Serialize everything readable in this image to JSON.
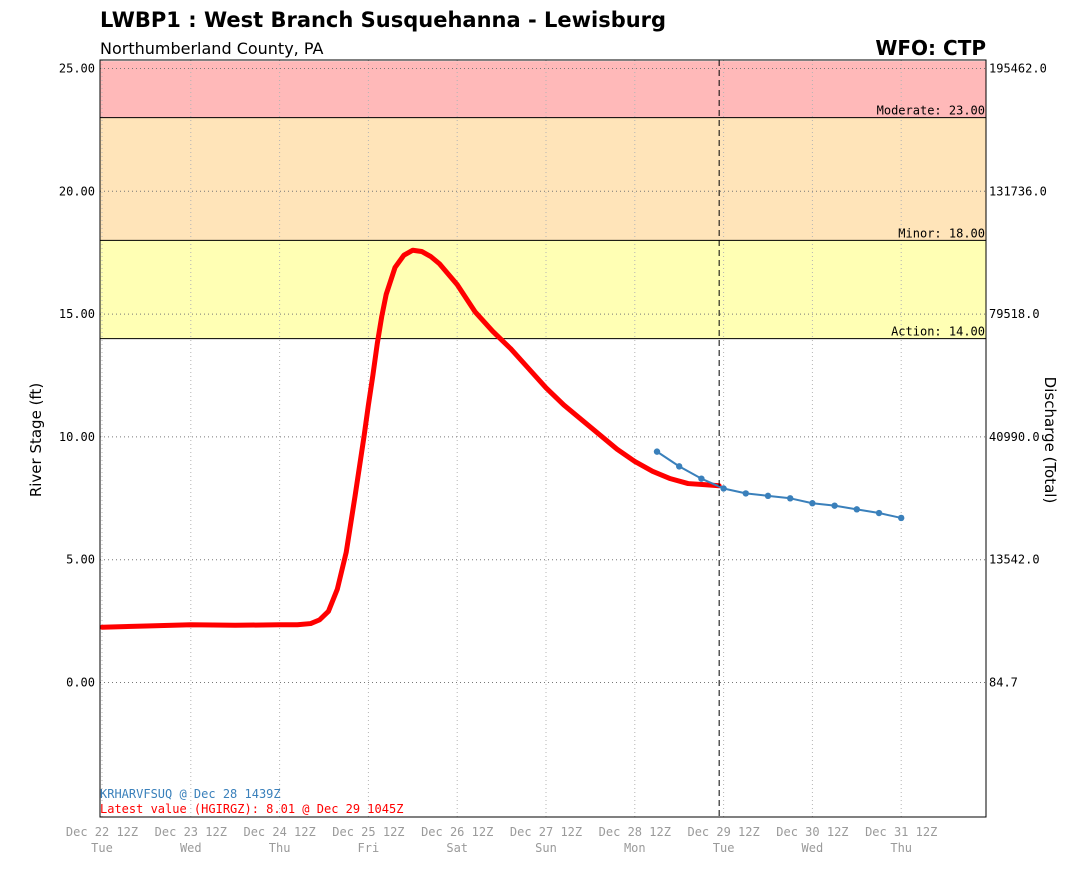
{
  "header": {
    "title": "LWBP1 : West Branch Susquehanna - Lewisburg",
    "subtitle": "Northumberland County, PA",
    "wfo": "WFO: CTP"
  },
  "chart_data": {
    "type": "line",
    "ylabel": "River Stage (ft)",
    "ylabel_right": "Discharge (Total)",
    "ylim": [
      -5.5,
      25.3
    ],
    "yticks": [
      {
        "value": 0,
        "label": "0.00",
        "right": "84.7"
      },
      {
        "value": 5,
        "label": "5.00",
        "right": "13542.0"
      },
      {
        "value": 10,
        "label": "10.00",
        "right": "40990.0"
      },
      {
        "value": 15,
        "label": "15.00",
        "right": "79518.0"
      },
      {
        "value": 20,
        "label": "20.00",
        "right": "131736.0"
      },
      {
        "value": 25,
        "label": "25.00",
        "right": "195462.0"
      }
    ],
    "xticks": [
      {
        "day": 0,
        "label": "Dec 22 12Z",
        "sub": "Tue"
      },
      {
        "day": 1,
        "label": "Dec 23 12Z",
        "sub": "Wed"
      },
      {
        "day": 2,
        "label": "Dec 24 12Z",
        "sub": "Thu"
      },
      {
        "day": 3,
        "label": "Dec 25 12Z",
        "sub": "Fri"
      },
      {
        "day": 4,
        "label": "Dec 26 12Z",
        "sub": "Sat"
      },
      {
        "day": 5,
        "label": "Dec 27 12Z",
        "sub": "Sun"
      },
      {
        "day": 6,
        "label": "Dec 28 12Z",
        "sub": "Mon"
      },
      {
        "day": 7,
        "label": "Dec 29 12Z",
        "sub": "Tue"
      },
      {
        "day": 8,
        "label": "Dec 30 12Z",
        "sub": "Wed"
      },
      {
        "day": 9,
        "label": "Dec 31 12Z",
        "sub": "Thu"
      }
    ],
    "xlim_days": [
      0,
      10
    ],
    "now_day": 6.95,
    "flood_categories": [
      {
        "name": "Action",
        "label": "Action: 14.00",
        "value": 14.0,
        "color": "#ffffb4"
      },
      {
        "name": "Minor",
        "label": "Minor: 18.00",
        "value": 18.0,
        "color": "#ffe4b9"
      },
      {
        "name": "Moderate",
        "label": "Moderate: 23.00",
        "value": 23.0,
        "color": "#ffb9b9"
      }
    ],
    "band_top_value": 25.3,
    "series": [
      {
        "name": "Observed (HGIRGZ)",
        "color": "#ff0000",
        "x": [
          0,
          0.5,
          1,
          1.5,
          2,
          2.2,
          2.35,
          2.45,
          2.55,
          2.65,
          2.75,
          2.85,
          2.95,
          3.0,
          3.05,
          3.1,
          3.15,
          3.2,
          3.3,
          3.4,
          3.5,
          3.6,
          3.7,
          3.8,
          4.0,
          4.2,
          4.4,
          4.6,
          4.8,
          5.0,
          5.2,
          5.4,
          5.6,
          5.8,
          6.0,
          6.2,
          6.4,
          6.6,
          6.8,
          6.95
        ],
        "y": [
          2.25,
          2.3,
          2.35,
          2.33,
          2.35,
          2.35,
          2.4,
          2.55,
          2.9,
          3.8,
          5.3,
          7.6,
          10.0,
          11.3,
          12.5,
          13.8,
          14.9,
          15.8,
          16.9,
          17.4,
          17.6,
          17.55,
          17.35,
          17.05,
          16.2,
          15.1,
          14.3,
          13.6,
          12.8,
          12.0,
          11.3,
          10.7,
          10.1,
          9.5,
          9.0,
          8.6,
          8.3,
          8.1,
          8.05,
          8.01
        ]
      },
      {
        "name": "Forecast (KRHARVFSUQ)",
        "color": "#3a80bb",
        "x": [
          6.25,
          6.5,
          6.75,
          7.0,
          7.25,
          7.5,
          7.75,
          8.0,
          8.25,
          8.5,
          8.75,
          9.0
        ],
        "y": [
          9.4,
          8.8,
          8.3,
          7.9,
          7.7,
          7.6,
          7.5,
          7.3,
          7.2,
          7.05,
          6.9,
          6.7
        ]
      }
    ],
    "annotations": {
      "forecast_issued": "KRHARVFSUQ @ Dec 28 1439Z",
      "latest_value": "Latest value (HGIRGZ): 8.01 @ Dec 29 1045Z"
    },
    "grid": true
  }
}
